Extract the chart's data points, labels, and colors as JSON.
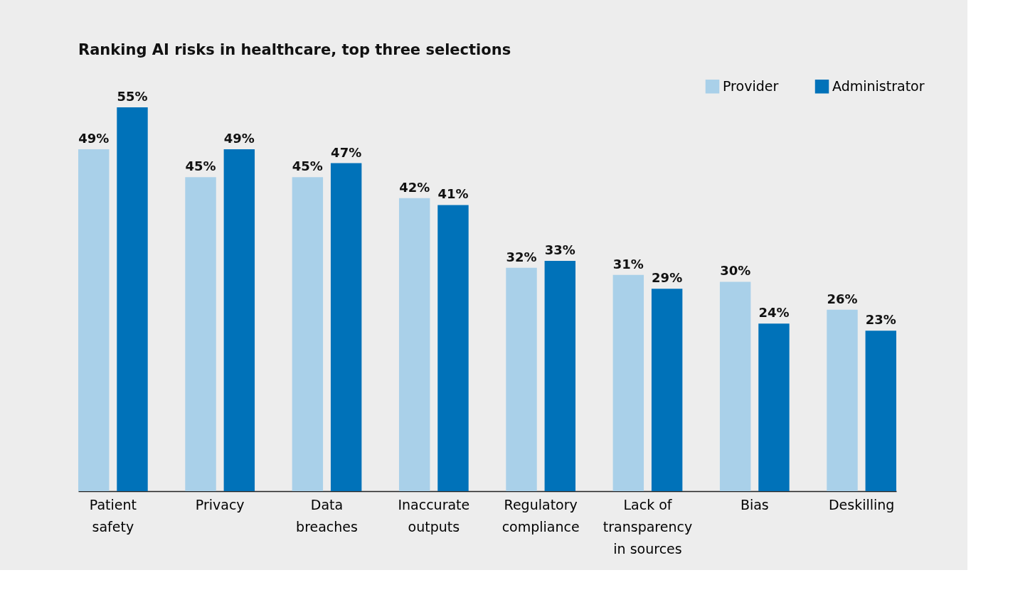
{
  "chart_data": {
    "type": "bar",
    "title": "Ranking AI risks in healthcare, top three selections",
    "categories": [
      "Patient\nsafety",
      "Privacy",
      "Data\nbreaches",
      "Inaccurate\noutputs",
      "Regulatory\ncompliance",
      "Lack of\ntransparency\nin sources",
      "Bias",
      "Deskilling"
    ],
    "series": [
      {
        "name": "Provider",
        "color": "#a9d0e9",
        "values": [
          49,
          45,
          45,
          42,
          32,
          31,
          30,
          26
        ],
        "value_labels": [
          "49%",
          "45%",
          "45%",
          "42%",
          "32%",
          "31%",
          "30%",
          "26%"
        ]
      },
      {
        "name": "Administrator",
        "color": "#0072b9",
        "values": [
          55,
          49,
          47,
          41,
          33,
          29,
          24,
          23
        ],
        "value_labels": [
          "55%",
          "49%",
          "47%",
          "41%",
          "33%",
          "29%",
          "24%",
          "23%"
        ]
      }
    ],
    "legend": "top right",
    "grid": false
  }
}
